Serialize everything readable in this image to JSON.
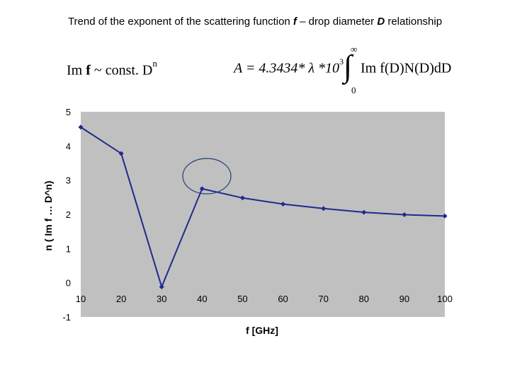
{
  "title": {
    "part1": "Trend of the exponent of the scattering function ",
    "f": "f",
    "part2": " – drop diameter ",
    "D": "D",
    "part3": " relationship"
  },
  "formula1": {
    "lhs": "Im ",
    "f": "f",
    "rest": " ~  const. D",
    "exp": "n"
  },
  "formula2": {
    "lhs": "A = 4.3434* λ *10",
    "exp": "3",
    "integrand": "Im f(D)N(D)dD",
    "upper": "∞",
    "lower": "0"
  },
  "colors": {
    "line": "#1f2a8c",
    "plot_bg": "#c0c0c0",
    "circle": "#1f3f6e"
  },
  "chart_data": {
    "type": "line",
    "xlabel": "f [GHz]",
    "ylabel": "n  ( Im f … D^n)",
    "categories": [
      "10",
      "20",
      "30",
      "40",
      "50",
      "60",
      "70",
      "80",
      "90",
      "100"
    ],
    "series": [
      {
        "values": [
          4.55,
          3.78,
          -0.12,
          2.75,
          2.48,
          2.3,
          2.17,
          2.06,
          1.99,
          1.95
        ]
      }
    ],
    "ylim": [
      -1,
      5
    ],
    "yticks": [
      "-1",
      "0",
      "1",
      "2",
      "3",
      "4",
      "5"
    ],
    "grid": false,
    "legend": "none",
    "annotation": "circle around 40 GHz point"
  }
}
